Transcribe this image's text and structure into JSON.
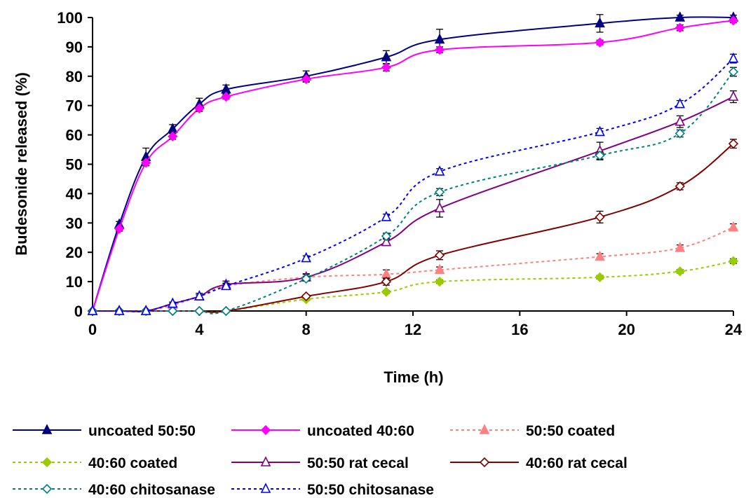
{
  "chart_data": {
    "type": "line",
    "title": "",
    "xlabel": "Time (h)",
    "ylabel": "Budesonide released (%)",
    "xlim": [
      0,
      24
    ],
    "ylim": [
      0,
      100
    ],
    "xticks": [
      0,
      4,
      8,
      12,
      16,
      20,
      24
    ],
    "yticks": [
      0,
      10,
      20,
      30,
      40,
      50,
      60,
      70,
      80,
      90,
      100
    ],
    "grid": false,
    "legend_position": "bottom",
    "series": [
      {
        "name": "uncoated 50:50",
        "color": "#000080",
        "marker": "triangle-filled",
        "dash": "solid",
        "x": [
          0,
          1,
          2,
          3,
          4,
          5,
          8,
          11,
          13,
          19,
          22,
          24
        ],
        "y": [
          0,
          29.5,
          52.5,
          62,
          70.5,
          75.5,
          80,
          86.5,
          92.5,
          98,
          100,
          100
        ],
        "err": [
          0,
          1,
          3,
          1.5,
          2,
          1.5,
          1.8,
          2.2,
          3.5,
          3,
          0.8,
          0.8
        ]
      },
      {
        "name": "uncoated 40:60",
        "color": "#ff00ff",
        "marker": "diamond-filled",
        "dash": "solid",
        "x": [
          0,
          1,
          2,
          3,
          4,
          5,
          8,
          11,
          13,
          19,
          22,
          24
        ],
        "y": [
          0,
          28,
          50.5,
          59.5,
          69,
          73,
          79,
          83,
          89,
          91.5,
          96.5,
          99
        ],
        "err": [
          0,
          0.8,
          1,
          1,
          1,
          0.8,
          1,
          1.2,
          1,
          0.8,
          1,
          0.8
        ]
      },
      {
        "name": "50:50 coated",
        "color": "#ff8080",
        "marker": "triangle-filled",
        "dash": "dotted",
        "x": [
          0,
          1,
          2,
          3,
          4,
          5,
          8,
          11,
          13,
          19,
          22,
          24
        ],
        "y": [
          0,
          0,
          0,
          2,
          5,
          8.5,
          11.5,
          12.5,
          14,
          18.5,
          21.5,
          28.5
        ],
        "err": [
          0,
          0,
          0,
          0.5,
          1,
          1,
          1.2,
          1.5,
          1,
          1,
          1,
          1.2
        ]
      },
      {
        "name": "40:60 coated",
        "color": "#99cc00",
        "marker": "diamond-filled",
        "dash": "dotted",
        "x": [
          0,
          1,
          2,
          3,
          4,
          5,
          8,
          11,
          13,
          19,
          22,
          24
        ],
        "y": [
          0,
          0,
          0,
          0,
          0,
          0,
          4,
          6.5,
          10,
          11.5,
          13.5,
          17
        ],
        "err": [
          0,
          0,
          0,
          0,
          0,
          0,
          0.5,
          0.5,
          0.6,
          0.6,
          0.6,
          0.8
        ]
      },
      {
        "name": "50:50 rat cecal",
        "color": "#800080",
        "marker": "triangle-open",
        "dash": "solid",
        "x": [
          0,
          1,
          2,
          3,
          4,
          5,
          8,
          11,
          13,
          19,
          22,
          24
        ],
        "y": [
          0,
          0,
          0,
          2.5,
          5,
          9,
          11.5,
          23.5,
          35,
          54.5,
          64.5,
          73
        ],
        "err": [
          0,
          0,
          0,
          0.5,
          1,
          1.2,
          1,
          1.2,
          3,
          3,
          2,
          2
        ]
      },
      {
        "name": "40:60 rat cecal",
        "color": "#800000",
        "marker": "diamond-open",
        "dash": "solid",
        "x": [
          0,
          1,
          2,
          3,
          4,
          5,
          8,
          11,
          13,
          19,
          22,
          24
        ],
        "y": [
          0,
          0,
          0,
          0,
          0,
          0,
          5,
          10,
          19,
          32,
          42.5,
          57
        ],
        "err": [
          0,
          0,
          0,
          0,
          0,
          0,
          0.5,
          1.2,
          1.5,
          2,
          1.2,
          1.5
        ]
      },
      {
        "name": "40:60 chitosanase",
        "color": "#008080",
        "marker": "diamond-open",
        "dash": "dotted",
        "x": [
          0,
          1,
          2,
          3,
          4,
          5,
          8,
          11,
          13,
          19,
          22,
          24
        ],
        "y": [
          0,
          0,
          0,
          0,
          0,
          0,
          11,
          25.5,
          40.5,
          53,
          60.5,
          81.5
        ],
        "err": [
          0,
          0,
          0,
          0,
          0,
          0,
          0.8,
          1,
          1.2,
          1.2,
          1.2,
          1.5
        ]
      },
      {
        "name": "50:50 chitosanase",
        "color": "#0000ff",
        "marker": "triangle-open",
        "dash": "dotted",
        "x": [
          0,
          1,
          2,
          3,
          4,
          5,
          8,
          11,
          13,
          19,
          22,
          24
        ],
        "y": [
          0,
          0,
          0,
          2.5,
          5,
          8.5,
          18,
          32,
          47.5,
          61,
          70.5,
          86
        ],
        "err": [
          0,
          0,
          0,
          0.5,
          0.5,
          0.8,
          0.8,
          1,
          1,
          1.2,
          1.2,
          1.5
        ]
      }
    ]
  }
}
